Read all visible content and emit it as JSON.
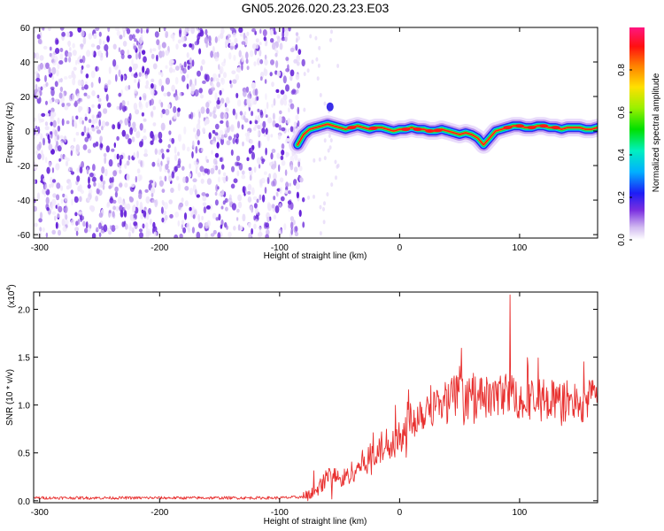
{
  "figure_title": "GN05.2026.020.23.23.E03",
  "colors": {
    "line": "#e8302f",
    "axis": "#000000",
    "background": "#ffffff"
  },
  "chart_data": [
    {
      "type": "heatmap",
      "xlabel": "Height of straight line (km)",
      "ylabel": "Frequency (Hz)",
      "xlim": [
        -305,
        165
      ],
      "ylim": [
        -62,
        60
      ],
      "x_ticks": [
        -300,
        -200,
        -100,
        0,
        100
      ],
      "y_ticks": [
        60,
        40,
        20,
        0,
        -20,
        -40,
        -60
      ],
      "x_tick_labels": [
        "-300",
        "-200",
        "-100",
        "0",
        "100"
      ],
      "y_tick_labels": [
        "60",
        "40",
        "20",
        "0",
        "-20",
        "-40",
        "-60"
      ],
      "noise_region_x": [
        -305,
        -80
      ],
      "signal_start_x": -85,
      "ridge": {
        "x": [
          -85,
          -80,
          -75,
          -70,
          -65,
          -60,
          -55,
          -50,
          -45,
          -40,
          -35,
          -30,
          -25,
          -20,
          -15,
          -10,
          -5,
          0,
          5,
          10,
          15,
          20,
          25,
          30,
          35,
          40,
          45,
          50,
          55,
          60,
          65,
          70,
          75,
          80,
          85,
          90,
          95,
          100,
          105,
          110,
          115,
          120,
          125,
          130,
          135,
          140,
          145,
          150,
          155,
          160,
          165
        ],
        "freq": [
          -8,
          -2,
          1,
          2,
          3,
          4,
          3,
          2,
          1,
          2,
          3,
          2,
          1,
          2,
          2,
          1,
          0,
          1,
          1,
          2,
          1,
          1,
          0,
          0,
          1,
          0,
          -1,
          -2,
          -1,
          -2,
          -4,
          -8,
          -4,
          0,
          1,
          2,
          3,
          3,
          2,
          2,
          3,
          3,
          2,
          2,
          1,
          2,
          2,
          2,
          1,
          1,
          2
        ]
      },
      "colorbar": {
        "label": "Normalized spectral amplitude",
        "ticks": [
          0.0,
          0.2,
          0.4,
          0.6,
          0.8
        ],
        "tick_labels": [
          "0.0",
          "0.2",
          "0.4",
          "0.6",
          "0.8"
        ],
        "range": [
          0,
          1
        ]
      }
    },
    {
      "type": "line",
      "xlabel": "Height of straight line (km)",
      "ylabel": "SNR (10 * v/v)",
      "exponent_label": "(x10",
      "exponent_sup": "4",
      "exponent_close": ")",
      "xlim": [
        -305,
        165
      ],
      "ylim": [
        -0.02,
        2.18
      ],
      "x_ticks": [
        -300,
        -200,
        -100,
        0,
        100
      ],
      "y_ticks": [
        0.0,
        0.5,
        1.0,
        1.5,
        2.0
      ],
      "x_tick_labels": [
        "-300",
        "-200",
        "-100",
        "0",
        "100"
      ],
      "y_tick_labels": [
        "0.0",
        "0.5",
        "1.0",
        "1.5",
        "2.0"
      ],
      "series": [
        {
          "name": "SNR",
          "x": [
            -305,
            -250,
            -200,
            -150,
            -100,
            -80,
            -70,
            -60,
            -55,
            -50,
            -45,
            -40,
            -35,
            -30,
            -25,
            -20,
            -15,
            -10,
            -5,
            0,
            5,
            10,
            15,
            20,
            25,
            30,
            35,
            40,
            45,
            50,
            55,
            60,
            65,
            70,
            75,
            80,
            85,
            90,
            95,
            100,
            105,
            110,
            115,
            120,
            125,
            130,
            135,
            140,
            145,
            150,
            155,
            160,
            165
          ],
          "y": [
            0.03,
            0.03,
            0.03,
            0.03,
            0.03,
            0.04,
            0.1,
            0.25,
            0.3,
            0.2,
            0.25,
            0.3,
            0.35,
            0.4,
            0.45,
            0.5,
            0.55,
            0.6,
            0.65,
            0.7,
            0.8,
            0.85,
            0.9,
            0.95,
            1.0,
            1.0,
            1.05,
            1.05,
            1.1,
            1.1,
            1.05,
            1.1,
            1.15,
            1.1,
            1.05,
            1.1,
            1.1,
            1.15,
            1.1,
            1.05,
            1.1,
            1.05,
            1.05,
            1.1,
            1.05,
            1.05,
            1.0,
            1.05,
            1.05,
            1.0,
            1.05,
            1.05,
            1.05
          ],
          "noise_amplitude": 0.22,
          "peak": {
            "x": 92,
            "y": 2.15
          }
        }
      ]
    }
  ]
}
